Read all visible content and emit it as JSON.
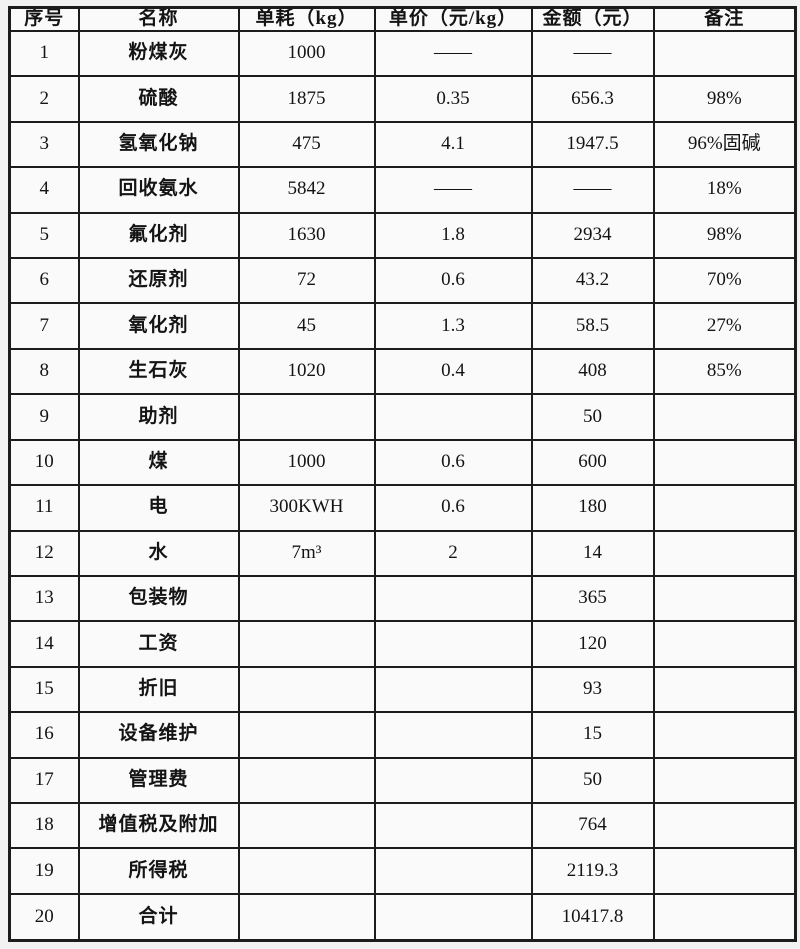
{
  "table": {
    "headers": [
      "序号",
      "名称",
      "单耗（kg）",
      "单价（元/kg）",
      "金额（元）",
      "备注"
    ],
    "rows": [
      {
        "no": "1",
        "name": "粉煤灰",
        "consumption": "1000",
        "price": "——",
        "amount": "——",
        "remark": ""
      },
      {
        "no": "2",
        "name": "硫酸",
        "consumption": "1875",
        "price": "0.35",
        "amount": "656.3",
        "remark": "98%"
      },
      {
        "no": "3",
        "name": "氢氧化钠",
        "consumption": "475",
        "price": "4.1",
        "amount": "1947.5",
        "remark": "96%固碱"
      },
      {
        "no": "4",
        "name": "回收氨水",
        "consumption": "5842",
        "price": "——",
        "amount": "——",
        "remark": "18%"
      },
      {
        "no": "5",
        "name": "氟化剂",
        "consumption": "1630",
        "price": "1.8",
        "amount": "2934",
        "remark": "98%"
      },
      {
        "no": "6",
        "name": "还原剂",
        "consumption": "72",
        "price": "0.6",
        "amount": "43.2",
        "remark": "70%"
      },
      {
        "no": "7",
        "name": "氧化剂",
        "consumption": "45",
        "price": "1.3",
        "amount": "58.5",
        "remark": "27%"
      },
      {
        "no": "8",
        "name": "生石灰",
        "consumption": "1020",
        "price": "0.4",
        "amount": "408",
        "remark": "85%"
      },
      {
        "no": "9",
        "name": "助剂",
        "consumption": "",
        "price": "",
        "amount": "50",
        "remark": ""
      },
      {
        "no": "10",
        "name": "煤",
        "consumption": "1000",
        "price": "0.6",
        "amount": "600",
        "remark": ""
      },
      {
        "no": "11",
        "name": "电",
        "consumption": "300KWH",
        "price": "0.6",
        "amount": "180",
        "remark": ""
      },
      {
        "no": "12",
        "name": "水",
        "consumption": "7m³",
        "price": "2",
        "amount": "14",
        "remark": ""
      },
      {
        "no": "13",
        "name": "包装物",
        "consumption": "",
        "price": "",
        "amount": "365",
        "remark": ""
      },
      {
        "no": "14",
        "name": "工资",
        "consumption": "",
        "price": "",
        "amount": "120",
        "remark": ""
      },
      {
        "no": "15",
        "name": "折旧",
        "consumption": "",
        "price": "",
        "amount": "93",
        "remark": ""
      },
      {
        "no": "16",
        "name": "设备维护",
        "consumption": "",
        "price": "",
        "amount": "15",
        "remark": ""
      },
      {
        "no": "17",
        "name": "管理费",
        "consumption": "",
        "price": "",
        "amount": "50",
        "remark": ""
      },
      {
        "no": "18",
        "name": "增值税及附加",
        "consumption": "",
        "price": "",
        "amount": "764",
        "remark": ""
      },
      {
        "no": "19",
        "name": "所得税",
        "consumption": "",
        "price": "",
        "amount": "2119.3",
        "remark": ""
      },
      {
        "no": "20",
        "name": "合计",
        "consumption": "",
        "price": "",
        "amount": "10417.8",
        "remark": ""
      }
    ]
  }
}
